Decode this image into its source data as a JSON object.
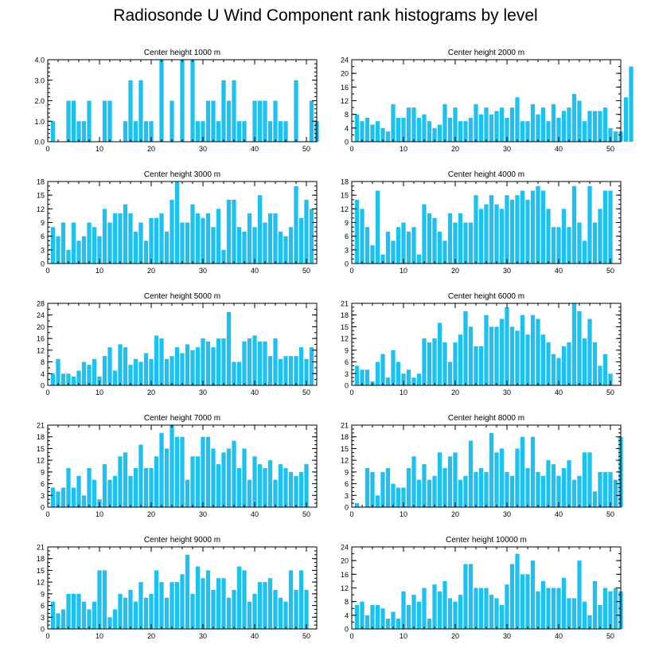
{
  "title": "Radiosonde U Wind Component rank histograms by level",
  "colors": {
    "bar": "#1ec0f0",
    "axis": "#000000",
    "background": "#ffffff"
  },
  "chart_data": [
    {
      "type": "bar",
      "title": "Center height 1000 m",
      "xlim": [
        0,
        52
      ],
      "ylim": [
        0,
        4
      ],
      "yticks": [
        0,
        1,
        2,
        3,
        4
      ],
      "ytick_labels": [
        "0.0",
        "1.0",
        "2.0",
        "3.0",
        "4.0"
      ],
      "xticks": [
        0,
        10,
        20,
        30,
        40,
        50
      ],
      "ytick_minor_step": 0.2,
      "values": [
        1,
        0,
        0,
        2,
        2,
        1,
        1,
        2,
        0,
        0,
        2,
        2,
        0,
        0,
        1,
        3,
        1,
        3,
        1,
        1,
        0,
        4,
        0,
        2,
        0,
        4,
        0,
        4,
        1,
        1,
        2,
        2,
        1,
        3,
        2,
        3,
        1,
        1,
        0,
        2,
        2,
        2,
        1,
        2,
        1,
        1,
        0,
        3,
        0,
        0,
        2,
        1
      ]
    },
    {
      "type": "bar",
      "title": "Center height 2000 m",
      "xlim": [
        0,
        52
      ],
      "ylim": [
        0,
        24
      ],
      "yticks": [
        0,
        4,
        8,
        12,
        16,
        20,
        24
      ],
      "ytick_labels": [
        "0",
        "4",
        "8",
        "12",
        "16",
        "20",
        "24"
      ],
      "xticks": [
        0,
        10,
        20,
        30,
        40,
        50
      ],
      "ytick_minor_step": 2,
      "values": [
        8,
        6,
        7,
        5,
        6,
        4,
        3,
        11,
        7,
        7,
        10,
        10,
        7,
        8,
        6,
        4,
        5,
        11,
        7,
        10,
        6,
        6,
        7,
        11,
        8,
        10,
        8,
        9,
        10,
        7,
        10,
        13,
        6,
        6,
        11,
        8,
        10,
        6,
        11,
        7,
        9,
        10,
        14,
        12,
        6,
        9,
        9,
        9,
        10,
        4,
        3,
        3,
        13,
        22
      ]
    },
    {
      "type": "bar",
      "title": "Center height 3000 m",
      "xlim": [
        0,
        52
      ],
      "ylim": [
        0,
        18
      ],
      "yticks": [
        0,
        3,
        6,
        9,
        12,
        15,
        18
      ],
      "ytick_labels": [
        "0",
        "3",
        "6",
        "9",
        "12",
        "15",
        "18"
      ],
      "xticks": [
        0,
        10,
        20,
        30,
        40,
        50
      ],
      "ytick_minor_step": 1,
      "values": [
        8,
        6,
        9,
        3,
        9,
        5,
        6,
        9,
        8,
        6,
        12,
        9,
        11,
        11,
        13,
        11,
        7,
        9,
        5,
        10,
        10,
        11,
        7,
        14,
        18,
        9,
        9,
        13,
        11,
        10,
        11,
        8,
        12,
        3,
        14,
        14,
        8,
        7,
        11,
        8,
        15,
        9,
        11,
        11,
        7,
        6,
        8,
        17,
        10,
        14,
        12
      ]
    },
    {
      "type": "bar",
      "title": "Center height 4000 m",
      "xlim": [
        0,
        52
      ],
      "ylim": [
        0,
        18
      ],
      "yticks": [
        0,
        3,
        6,
        9,
        12,
        15,
        18
      ],
      "ytick_labels": [
        "0",
        "3",
        "6",
        "9",
        "12",
        "15",
        "18"
      ],
      "xticks": [
        0,
        10,
        20,
        30,
        40,
        50
      ],
      "ytick_minor_step": 1,
      "values": [
        14,
        12,
        8,
        4,
        16,
        2,
        7,
        5,
        8,
        9,
        7,
        8,
        2,
        13,
        11,
        10,
        7,
        5,
        11,
        9,
        11,
        9,
        9,
        15,
        12,
        13,
        15,
        13,
        12,
        15,
        14,
        15,
        16,
        14,
        16,
        17,
        16,
        12,
        8,
        8,
        12,
        8,
        17,
        9,
        5,
        17,
        9,
        12,
        16,
        16
      ]
    },
    {
      "type": "bar",
      "title": "Center height 5000 m",
      "xlim": [
        0,
        52
      ],
      "ylim": [
        0,
        28
      ],
      "yticks": [
        0,
        4,
        8,
        12,
        16,
        20,
        24,
        28
      ],
      "ytick_labels": [
        "0",
        "4",
        "8",
        "12",
        "16",
        "20",
        "24",
        "28"
      ],
      "xticks": [
        0,
        10,
        20,
        30,
        40,
        50
      ],
      "ytick_minor_step": 2,
      "values": [
        4,
        9,
        4,
        4,
        3,
        5,
        8,
        7,
        9,
        3,
        10,
        13,
        5,
        14,
        13,
        7,
        9,
        8,
        11,
        9,
        17,
        16,
        9,
        10,
        13,
        11,
        14,
        12,
        13,
        16,
        15,
        13,
        16,
        16,
        25,
        8,
        8,
        15,
        16,
        17,
        15,
        15,
        10,
        16,
        9,
        10,
        10,
        10,
        13,
        9,
        13
      ]
    },
    {
      "type": "bar",
      "title": "Center height 6000 m",
      "xlim": [
        0,
        52
      ],
      "ylim": [
        0,
        21
      ],
      "yticks": [
        0,
        3,
        6,
        9,
        12,
        15,
        18,
        21
      ],
      "ytick_labels": [
        "0",
        "3",
        "6",
        "9",
        "12",
        "15",
        "18",
        "21"
      ],
      "xticks": [
        0,
        10,
        20,
        30,
        40,
        50
      ],
      "ytick_minor_step": 1,
      "values": [
        5,
        4,
        4,
        1,
        6,
        8,
        2,
        9,
        6,
        3,
        4,
        2,
        3,
        12,
        11,
        12,
        16,
        11,
        6,
        11,
        13,
        19,
        15,
        10,
        10,
        18,
        15,
        15,
        17,
        20,
        15,
        14,
        18,
        13,
        18,
        17,
        13,
        11,
        8,
        7,
        10,
        11,
        21,
        19,
        12,
        17,
        11,
        5,
        8,
        3
      ]
    },
    {
      "type": "bar",
      "title": "Center height 7000 m",
      "xlim": [
        0,
        52
      ],
      "ylim": [
        0,
        21
      ],
      "yticks": [
        0,
        3,
        6,
        9,
        12,
        15,
        18,
        21
      ],
      "ytick_labels": [
        "0",
        "3",
        "6",
        "9",
        "12",
        "15",
        "18",
        "21"
      ],
      "xticks": [
        0,
        10,
        20,
        30,
        40,
        50
      ],
      "ytick_minor_step": 1,
      "values": [
        5,
        4,
        5,
        10,
        5,
        8,
        3,
        10,
        7,
        2,
        11,
        7,
        8,
        13,
        14,
        8,
        10,
        16,
        10,
        10,
        13,
        19,
        15,
        21,
        18,
        18,
        7,
        13,
        13,
        18,
        18,
        15,
        11,
        14,
        15,
        17,
        10,
        15,
        7,
        13,
        11,
        10,
        12,
        7,
        11,
        10,
        9,
        8,
        9,
        11
      ]
    },
    {
      "type": "bar",
      "title": "Center height 8000 m",
      "xlim": [
        0,
        52
      ],
      "ylim": [
        0,
        21
      ],
      "yticks": [
        0,
        3,
        6,
        9,
        12,
        15,
        18,
        21
      ],
      "ytick_labels": [
        "0",
        "3",
        "6",
        "9",
        "12",
        "15",
        "18",
        "21"
      ],
      "xticks": [
        0,
        10,
        20,
        30,
        40,
        50
      ],
      "ytick_minor_step": 1,
      "values": [
        1,
        0,
        10,
        9,
        3,
        9,
        10,
        6,
        5,
        5,
        10,
        13,
        7,
        11,
        7,
        8,
        14,
        10,
        13,
        14,
        7,
        8,
        17,
        9,
        10,
        9,
        19,
        14,
        15,
        9,
        8,
        15,
        18,
        10,
        18,
        9,
        8,
        12,
        11,
        8,
        10,
        12,
        7,
        8,
        14,
        14,
        4,
        9,
        9,
        9,
        7,
        18
      ]
    },
    {
      "type": "bar",
      "title": "Center height 9000 m",
      "xlim": [
        0,
        52
      ],
      "ylim": [
        0,
        21
      ],
      "yticks": [
        0,
        3,
        6,
        9,
        12,
        15,
        18,
        21
      ],
      "ytick_labels": [
        "0",
        "3",
        "6",
        "9",
        "12",
        "15",
        "18",
        "21"
      ],
      "xticks": [
        0,
        10,
        20,
        30,
        40,
        50
      ],
      "ytick_minor_step": 1,
      "values": [
        7,
        4,
        5,
        9,
        9,
        9,
        7,
        5,
        7,
        15,
        15,
        3,
        5,
        9,
        8,
        10,
        7,
        12,
        8,
        9,
        15,
        12,
        8,
        12,
        12,
        14,
        19,
        9,
        16,
        13,
        15,
        10,
        13,
        13,
        8,
        10,
        16,
        15,
        7,
        9,
        12,
        12,
        13,
        10,
        8,
        7,
        15,
        10,
        15,
        10
      ]
    },
    {
      "type": "bar",
      "title": "Center height 10000 m",
      "xlim": [
        0,
        52
      ],
      "ylim": [
        0,
        24
      ],
      "yticks": [
        0,
        4,
        8,
        12,
        16,
        20,
        24
      ],
      "ytick_labels": [
        "0",
        "4",
        "8",
        "12",
        "16",
        "20",
        "24"
      ],
      "xticks": [
        0,
        10,
        20,
        30,
        40,
        50
      ],
      "ytick_minor_step": 2,
      "values": [
        7,
        8,
        4,
        7,
        7,
        6,
        3,
        5,
        3,
        11,
        7,
        10,
        8,
        12,
        3,
        13,
        11,
        14,
        9,
        8,
        10,
        19,
        19,
        12,
        12,
        12,
        10,
        9,
        7,
        13,
        19,
        22,
        16,
        16,
        20,
        11,
        14,
        12,
        12,
        12,
        15,
        9,
        9,
        20,
        8,
        4,
        14,
        7,
        12,
        11,
        12,
        11
      ]
    }
  ]
}
